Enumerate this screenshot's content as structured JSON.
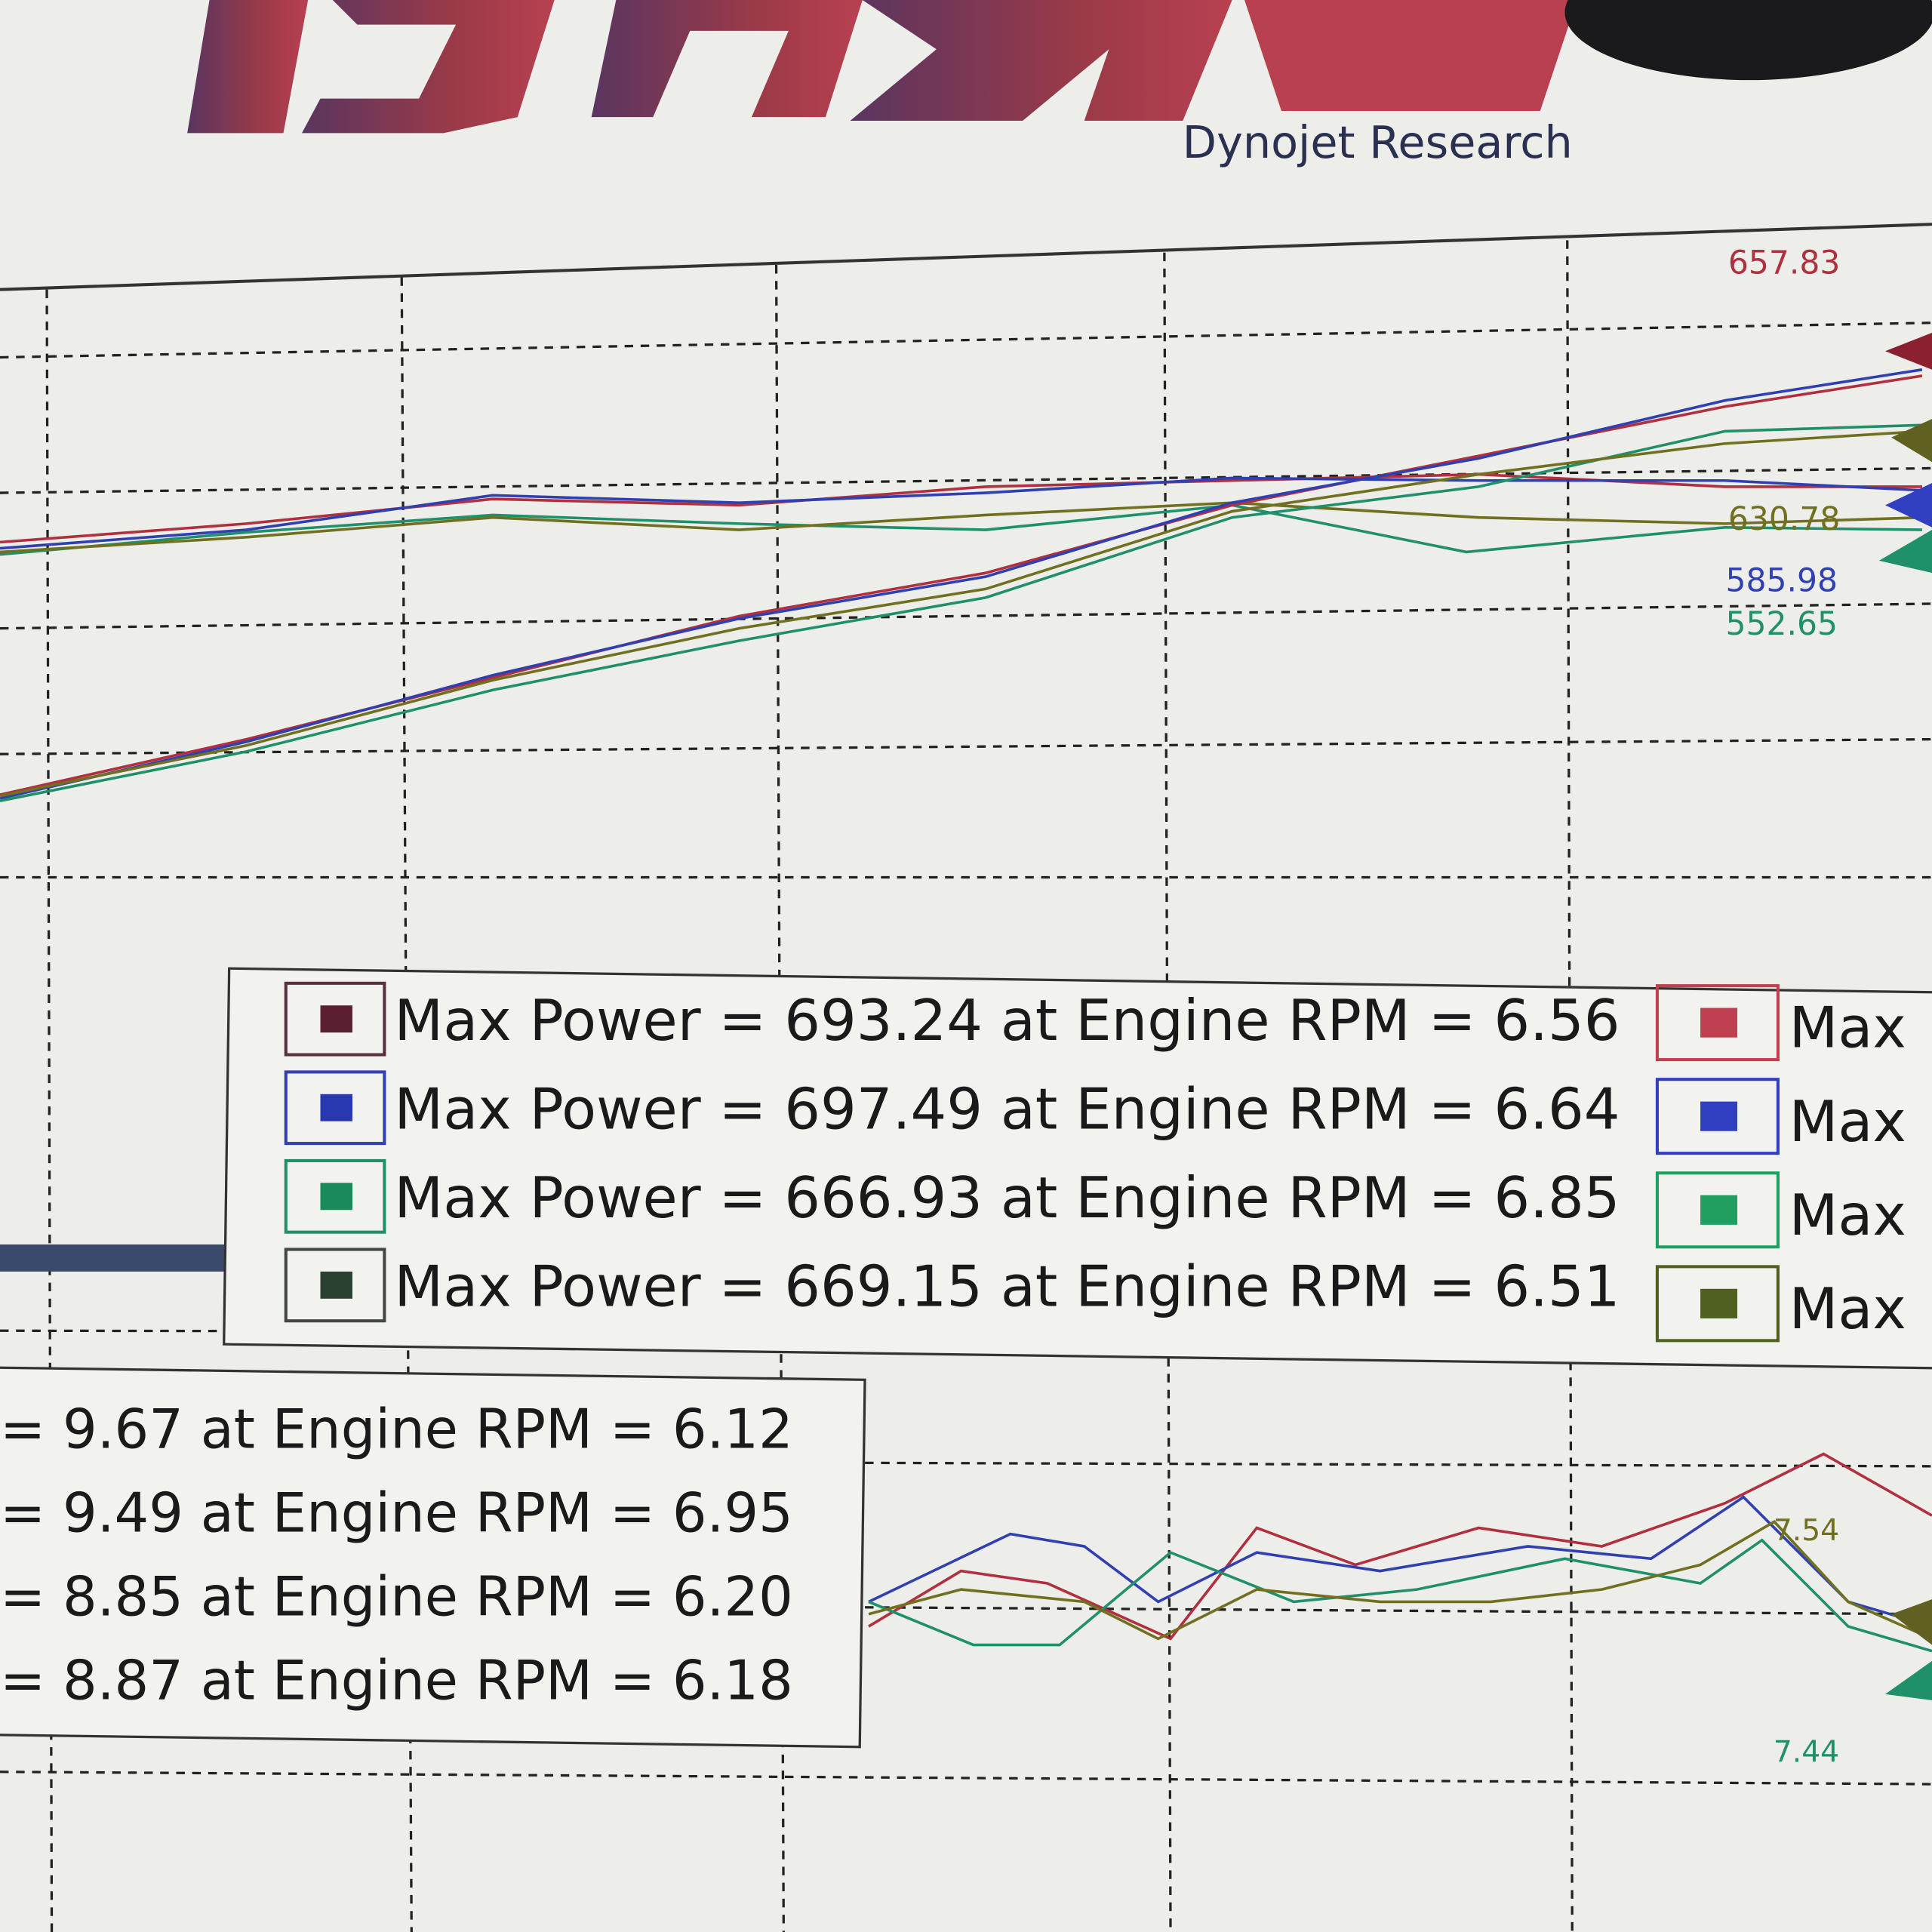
{
  "header": {
    "subtitle": "Dynojet Research"
  },
  "annotations": {
    "power_top": [
      "657.83",
      "630.78",
      "585.98",
      "552.65"
    ],
    "torque": [
      "7.54",
      "7.44"
    ]
  },
  "legend_power": {
    "rows": [
      "Max Power = 693.24 at Engine RPM = 6.56",
      "Max Power = 697.49 at Engine RPM = 6.64",
      "Max Power = 666.93 at Engine RPM = 6.85",
      "Max Power = 669.15 at Engine RPM = 6.51"
    ],
    "right_rows": [
      "Max",
      "Max",
      "Max",
      "Max"
    ]
  },
  "legend_torque": {
    "rows": [
      "= 9.67 at Engine RPM = 6.12",
      "= 9.49 at Engine RPM = 6.95",
      "= 8.85 at Engine RPM = 6.20",
      "= 8.87 at Engine RPM = 6.18"
    ]
  }
}
